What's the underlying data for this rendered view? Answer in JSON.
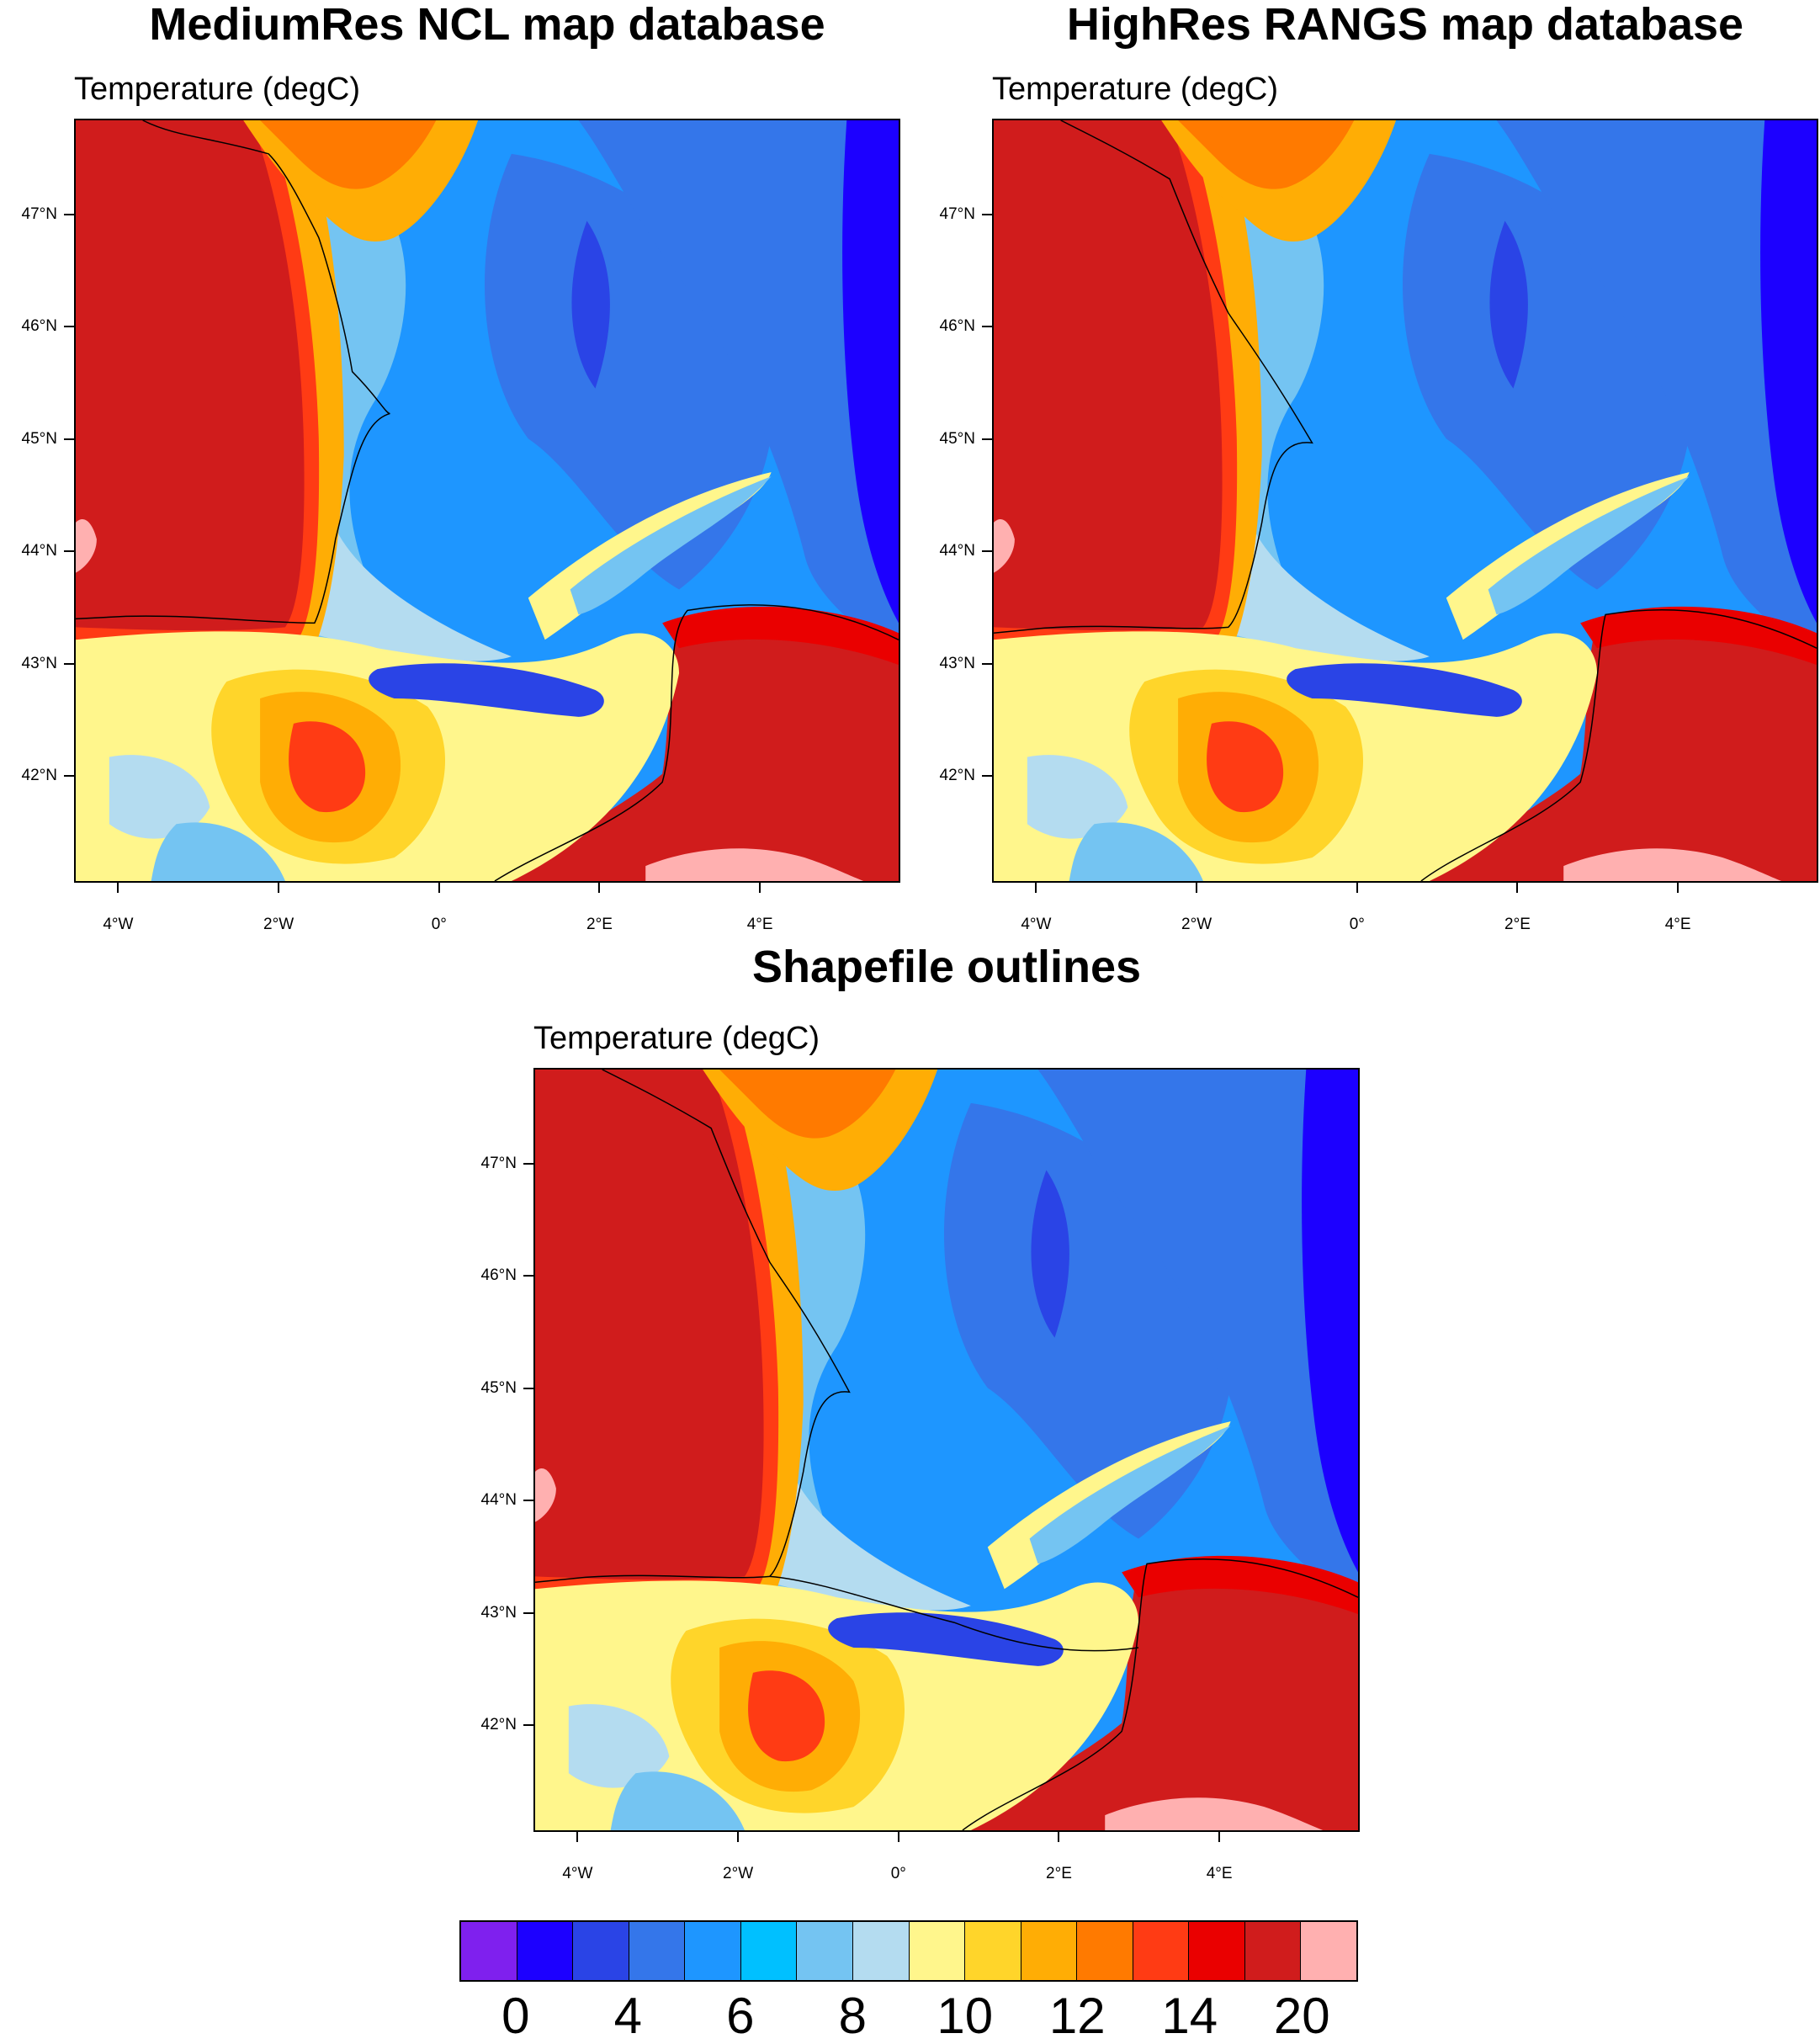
{
  "titles": {
    "left": "MediumRes NCL map database",
    "right": "HighRes RANGS map database",
    "bottom": "Shapefile outlines"
  },
  "panels": [
    {
      "id": "medres",
      "subtitle": "Temperature (degC)"
    },
    {
      "id": "highres",
      "subtitle": "Temperature (degC)"
    },
    {
      "id": "shapefile",
      "subtitle": "Temperature (degC)"
    }
  ],
  "axes": {
    "lat_labels": [
      "47°N",
      "46°N",
      "45°N",
      "44°N",
      "43°N",
      "42°N"
    ],
    "lat_values": [
      47,
      46,
      45,
      44,
      43,
      42
    ],
    "lon_labels": [
      "4°W",
      "2°W",
      "0°",
      "2°E",
      "4°E"
    ],
    "lon_values": [
      -4,
      -2,
      0,
      2,
      4
    ],
    "lon_range": [
      -4.55,
      5.75
    ],
    "lat_range": [
      41.05,
      47.85
    ]
  },
  "colorbar": {
    "colors": [
      "#7f20ee",
      "#1c00ff",
      "#2a44e6",
      "#3476ea",
      "#1e96ff",
      "#00c0ff",
      "#74c4f2",
      "#b4dcf0",
      "#fff68c",
      "#ffd52a",
      "#ffad05",
      "#ff7a00",
      "#ff3b14",
      "#ea0000",
      "#d01c1c",
      "#ffb0b0"
    ],
    "labels": [
      "0",
      "4",
      "6",
      "8",
      "10",
      "12",
      "14",
      "20"
    ]
  }
}
